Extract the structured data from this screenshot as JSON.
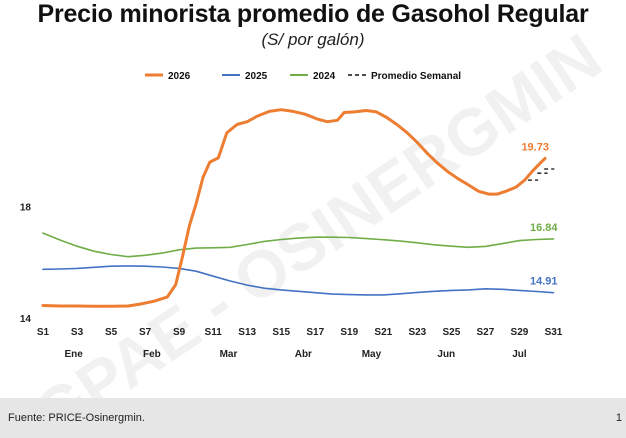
{
  "page": {
    "title": "Precio minorista promedio de Gasohol Regular",
    "subtitle": "(S/ por galón)",
    "watermark": "GPAE - OSINERGMIN",
    "source": "Fuente: PRICE-Osinergmin.",
    "corner_mark": "1"
  },
  "chart_data": {
    "type": "line",
    "title": "Precio minorista promedio de Gasohol Regular",
    "subtitle": "(S/ por galón)",
    "y_ticks": [
      14,
      18
    ],
    "ylim": [
      14,
      21.9
    ],
    "xlim": [
      1,
      31.5
    ],
    "x_ticks": [
      {
        "x": 1,
        "label": "S1"
      },
      {
        "x": 3,
        "label": "S3"
      },
      {
        "x": 5,
        "label": "S5"
      },
      {
        "x": 7,
        "label": "S7"
      },
      {
        "x": 9,
        "label": "S9"
      },
      {
        "x": 11,
        "label": "S11"
      },
      {
        "x": 13,
        "label": "S13"
      },
      {
        "x": 15,
        "label": "S15"
      },
      {
        "x": 17,
        "label": "S17"
      },
      {
        "x": 19,
        "label": "S19"
      },
      {
        "x": 21,
        "label": "S21"
      },
      {
        "x": 23,
        "label": "S23"
      },
      {
        "x": 25,
        "label": "S25"
      },
      {
        "x": 27,
        "label": "S27"
      },
      {
        "x": 29,
        "label": "S29"
      },
      {
        "x": 31,
        "label": "S31"
      }
    ],
    "months": [
      {
        "x": 2.8,
        "label": "Ene"
      },
      {
        "x": 7.4,
        "label": "Feb"
      },
      {
        "x": 11.9,
        "label": "Mar"
      },
      {
        "x": 16.3,
        "label": "Abr"
      },
      {
        "x": 20.3,
        "label": "May"
      },
      {
        "x": 24.7,
        "label": "Jun"
      },
      {
        "x": 29.0,
        "label": "Jul"
      }
    ],
    "grid": false,
    "legend_position": "top-center",
    "legend": [
      {
        "name": "2026",
        "color": "#ed7d31",
        "style": "solid"
      },
      {
        "name": "2025",
        "color": "#4472c4",
        "style": "solid"
      },
      {
        "name": "2024",
        "color": "#70ad47",
        "style": "solid"
      },
      {
        "name": "Promedio Semanal",
        "color": "#111111",
        "style": "dashed"
      }
    ],
    "series": [
      {
        "name": "2026",
        "color": "#ed7d31",
        "end_label": "19.73",
        "points": [
          [
            1,
            14.45
          ],
          [
            2,
            14.43
          ],
          [
            3,
            14.43
          ],
          [
            4,
            14.42
          ],
          [
            5,
            14.42
          ],
          [
            6,
            14.43
          ],
          [
            6.7,
            14.5
          ],
          [
            7.5,
            14.6
          ],
          [
            8.3,
            14.75
          ],
          [
            8.8,
            15.2
          ],
          [
            9.2,
            16.2
          ],
          [
            9.6,
            17.3
          ],
          [
            10,
            18.1
          ],
          [
            10.4,
            19.05
          ],
          [
            10.8,
            19.6
          ],
          [
            11.3,
            19.75
          ],
          [
            11.8,
            20.65
          ],
          [
            12.4,
            20.95
          ],
          [
            13,
            21.05
          ],
          [
            13.6,
            21.25
          ],
          [
            14.3,
            21.42
          ],
          [
            15,
            21.48
          ],
          [
            15.7,
            21.42
          ],
          [
            16.4,
            21.32
          ],
          [
            17.1,
            21.15
          ],
          [
            17.7,
            21.05
          ],
          [
            18.3,
            21.1
          ],
          [
            18.7,
            21.38
          ],
          [
            19.3,
            21.4
          ],
          [
            20,
            21.45
          ],
          [
            20.6,
            21.4
          ],
          [
            21.2,
            21.2
          ],
          [
            21.8,
            20.95
          ],
          [
            22.4,
            20.65
          ],
          [
            23,
            20.3
          ],
          [
            23.6,
            19.9
          ],
          [
            24.2,
            19.55
          ],
          [
            24.8,
            19.25
          ],
          [
            25.4,
            19.0
          ],
          [
            26,
            18.78
          ],
          [
            26.6,
            18.55
          ],
          [
            27.2,
            18.45
          ],
          [
            27.7,
            18.45
          ],
          [
            28.2,
            18.55
          ],
          [
            28.8,
            18.7
          ],
          [
            29.3,
            18.95
          ],
          [
            29.8,
            19.3
          ],
          [
            30.2,
            19.55
          ],
          [
            30.5,
            19.73
          ]
        ]
      },
      {
        "name": "2025",
        "color": "#4472c4",
        "end_label": "14.91",
        "points": [
          [
            1,
            15.75
          ],
          [
            2,
            15.76
          ],
          [
            3,
            15.78
          ],
          [
            4,
            15.82
          ],
          [
            5,
            15.86
          ],
          [
            6,
            15.87
          ],
          [
            7,
            15.86
          ],
          [
            8,
            15.83
          ],
          [
            9,
            15.78
          ],
          [
            10,
            15.68
          ],
          [
            11,
            15.5
          ],
          [
            12,
            15.33
          ],
          [
            13,
            15.18
          ],
          [
            14,
            15.07
          ],
          [
            15,
            15.01
          ],
          [
            16,
            14.96
          ],
          [
            17,
            14.91
          ],
          [
            18,
            14.86
          ],
          [
            19,
            14.84
          ],
          [
            20,
            14.83
          ],
          [
            21,
            14.83
          ],
          [
            22,
            14.87
          ],
          [
            23,
            14.92
          ],
          [
            24,
            14.96
          ],
          [
            25,
            14.99
          ],
          [
            26,
            15.01
          ],
          [
            27,
            15.05
          ],
          [
            28,
            15.03
          ],
          [
            29,
            14.99
          ],
          [
            30,
            14.95
          ],
          [
            31,
            14.91
          ]
        ]
      },
      {
        "name": "2024",
        "color": "#70ad47",
        "end_label": "16.84",
        "points": [
          [
            1,
            17.05
          ],
          [
            2,
            16.8
          ],
          [
            3,
            16.58
          ],
          [
            4,
            16.4
          ],
          [
            5,
            16.28
          ],
          [
            6,
            16.2
          ],
          [
            7,
            16.25
          ],
          [
            8,
            16.33
          ],
          [
            9,
            16.45
          ],
          [
            10,
            16.51
          ],
          [
            11,
            16.52
          ],
          [
            12,
            16.54
          ],
          [
            13,
            16.64
          ],
          [
            14,
            16.75
          ],
          [
            15,
            16.82
          ],
          [
            16,
            16.87
          ],
          [
            17,
            16.9
          ],
          [
            18,
            16.9
          ],
          [
            19,
            16.89
          ],
          [
            20,
            16.85
          ],
          [
            21,
            16.81
          ],
          [
            22,
            16.76
          ],
          [
            23,
            16.7
          ],
          [
            24,
            16.63
          ],
          [
            25,
            16.58
          ],
          [
            26,
            16.54
          ],
          [
            27,
            16.57
          ],
          [
            28,
            16.67
          ],
          [
            29,
            16.78
          ],
          [
            30,
            16.82
          ],
          [
            31,
            16.84
          ]
        ]
      },
      {
        "name": "Promedio Semanal",
        "color": "#111111",
        "style": "dashed",
        "segments": [
          [
            [
              29.5,
              18.95
            ],
            [
              30.1,
              18.95
            ]
          ],
          [
            [
              30.05,
              19.2
            ],
            [
              30.65,
              19.2
            ]
          ],
          [
            [
              30.45,
              19.35
            ],
            [
              31.05,
              19.35
            ]
          ]
        ]
      }
    ]
  }
}
